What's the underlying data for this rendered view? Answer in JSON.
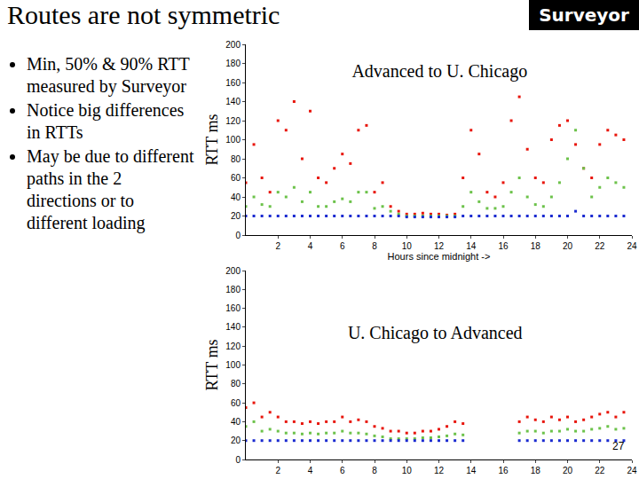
{
  "slide_title": "Routes are not symmetric",
  "logo": "Surveyor",
  "bullets": [
    "Min, 50% & 90% RTT measured by Surveyor",
    "Notice big differences in RTTs",
    "May be due to different paths in the 2 directions or to different loading"
  ],
  "page_number": "27",
  "chart_data": [
    {
      "type": "scatter",
      "title": "Advanced to U. Chicago",
      "x_label": "Hours since midnight ->",
      "y_label": "RTT ms",
      "marker": "square",
      "grid": false,
      "x": [
        0,
        0.5,
        1,
        1.5,
        2,
        2.5,
        3,
        3.5,
        4,
        4.5,
        5,
        5.5,
        6,
        6.5,
        7,
        7.5,
        8,
        8.5,
        9,
        9.5,
        10,
        10.5,
        11,
        11.5,
        12,
        12.5,
        13,
        13.5,
        14,
        14.5,
        15,
        15.5,
        16,
        16.5,
        17,
        17.5,
        18,
        18.5,
        19,
        19.5,
        20,
        20.5,
        21,
        21.5,
        22,
        22.5,
        23,
        23.5
      ],
      "xlim": [
        0,
        24
      ],
      "xticks": [
        2,
        4,
        6,
        8,
        10,
        12,
        14,
        16,
        18,
        20,
        22,
        24
      ],
      "ylim": [
        0,
        200
      ],
      "yticks": [
        0,
        20,
        40,
        60,
        80,
        100,
        120,
        140,
        160,
        180,
        200
      ],
      "series": [
        {
          "color": "#e8160c",
          "values": [
            55,
            95,
            60,
            45,
            120,
            110,
            140,
            80,
            130,
            60,
            55,
            70,
            85,
            75,
            110,
            115,
            45,
            55,
            30,
            25,
            22,
            22,
            23,
            22,
            22,
            21,
            22,
            60,
            110,
            85,
            45,
            40,
            55,
            120,
            145,
            90,
            60,
            55,
            100,
            115,
            120,
            95,
            70,
            60,
            95,
            110,
            105,
            100
          ]
        },
        {
          "color": "#6cc24a",
          "values": [
            30,
            40,
            32,
            30,
            45,
            40,
            50,
            35,
            45,
            30,
            30,
            35,
            38,
            35,
            45,
            45,
            28,
            30,
            25,
            22,
            20,
            20,
            20,
            20,
            20,
            20,
            20,
            30,
            45,
            35,
            28,
            28,
            30,
            45,
            60,
            40,
            32,
            30,
            40,
            55,
            80,
            110,
            70,
            40,
            50,
            60,
            55,
            50
          ]
        },
        {
          "color": "#1a2ad0",
          "values": [
            20,
            20,
            20,
            20,
            20,
            20,
            20,
            20,
            20,
            20,
            20,
            20,
            20,
            20,
            20,
            20,
            20,
            20,
            20,
            20,
            19,
            19,
            19,
            19,
            19,
            19,
            19,
            20,
            20,
            20,
            20,
            20,
            20,
            20,
            20,
            20,
            20,
            20,
            20,
            20,
            20,
            25,
            20,
            20,
            20,
            20,
            20,
            20
          ]
        }
      ]
    },
    {
      "type": "scatter",
      "title": "U. Chicago to Advanced",
      "y_label": "RTT ms",
      "marker": "square",
      "grid": false,
      "x": [
        0,
        0.5,
        1,
        1.5,
        2,
        2.5,
        3,
        3.5,
        4,
        4.5,
        5,
        5.5,
        6,
        6.5,
        7,
        7.5,
        8,
        8.5,
        9,
        9.5,
        10,
        10.5,
        11,
        11.5,
        12,
        12.5,
        13,
        13.5,
        14,
        14.5,
        15,
        15.5,
        16,
        16.5,
        17,
        17.5,
        18,
        18.5,
        19,
        19.5,
        20,
        20.5,
        21,
        21.5,
        22,
        22.5,
        23,
        23.5
      ],
      "xlim": [
        0,
        24
      ],
      "xticks": [
        2,
        4,
        6,
        8,
        10,
        12,
        14,
        16,
        18,
        20,
        22,
        24
      ],
      "ylim": [
        0,
        200
      ],
      "yticks": [
        0,
        20,
        40,
        60,
        80,
        100,
        120,
        140,
        160,
        180,
        200
      ],
      "series": [
        {
          "color": "#e8160c",
          "values": [
            55,
            60,
            45,
            50,
            45,
            40,
            40,
            38,
            40,
            38,
            40,
            40,
            45,
            40,
            42,
            40,
            35,
            33,
            30,
            30,
            28,
            28,
            30,
            30,
            32,
            35,
            40,
            38,
            null,
            null,
            null,
            null,
            null,
            null,
            40,
            45,
            42,
            40,
            45,
            42,
            45,
            40,
            42,
            45,
            48,
            50,
            45,
            50
          ]
        },
        {
          "color": "#6cc24a",
          "values": [
            35,
            40,
            30,
            32,
            30,
            28,
            28,
            27,
            28,
            27,
            28,
            28,
            30,
            28,
            28,
            27,
            25,
            24,
            22,
            22,
            22,
            22,
            23,
            23,
            24,
            25,
            27,
            26,
            null,
            null,
            null,
            null,
            null,
            null,
            28,
            30,
            30,
            28,
            30,
            30,
            32,
            30,
            30,
            32,
            33,
            35,
            32,
            33
          ]
        },
        {
          "color": "#1a2ad0",
          "values": [
            20,
            20,
            20,
            20,
            20,
            20,
            20,
            20,
            20,
            20,
            20,
            20,
            20,
            20,
            20,
            20,
            20,
            20,
            20,
            20,
            20,
            20,
            20,
            20,
            20,
            20,
            20,
            20,
            null,
            null,
            null,
            null,
            null,
            null,
            20,
            20,
            20,
            20,
            20,
            20,
            20,
            20,
            20,
            20,
            20,
            20,
            20,
            20
          ]
        }
      ]
    }
  ]
}
